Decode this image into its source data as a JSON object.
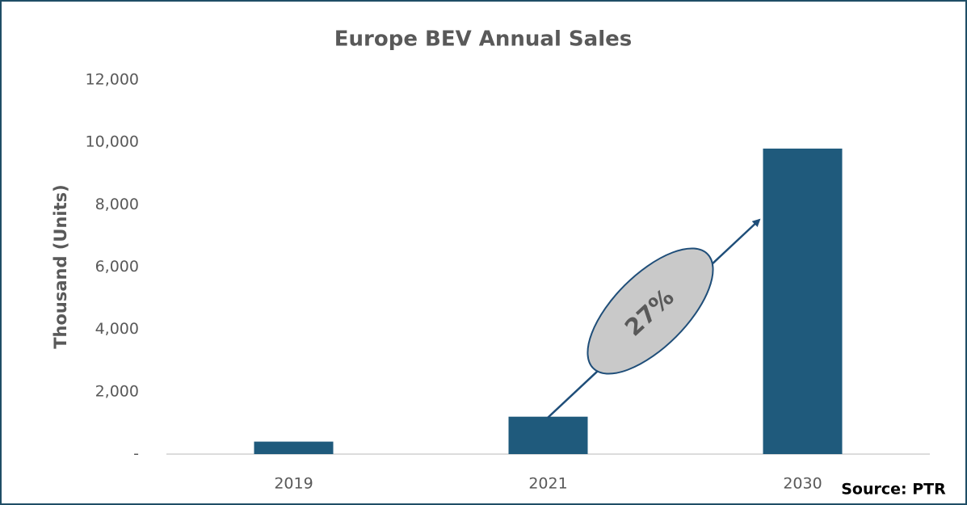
{
  "chart_data": {
    "type": "bar",
    "title": "Europe BEV Annual Sales",
    "y_label": "Thousand (Units)",
    "categories": [
      "2019",
      "2021",
      "2030"
    ],
    "values": [
      400,
      1200,
      9800
    ],
    "color": "#1f5a7c",
    "ylim": [
      0,
      12000
    ],
    "yticks": [
      {
        "value": 0,
        "label": "-"
      },
      {
        "value": 2000,
        "label": "2,000"
      },
      {
        "value": 4000,
        "label": "4,000"
      },
      {
        "value": 6000,
        "label": "6,000"
      },
      {
        "value": 8000,
        "label": "8,000"
      },
      {
        "value": 10000,
        "label": "10,000"
      },
      {
        "value": 12000,
        "label": "12,000"
      }
    ],
    "grid": false,
    "annotation": "27%",
    "source": "Source: PTR"
  }
}
